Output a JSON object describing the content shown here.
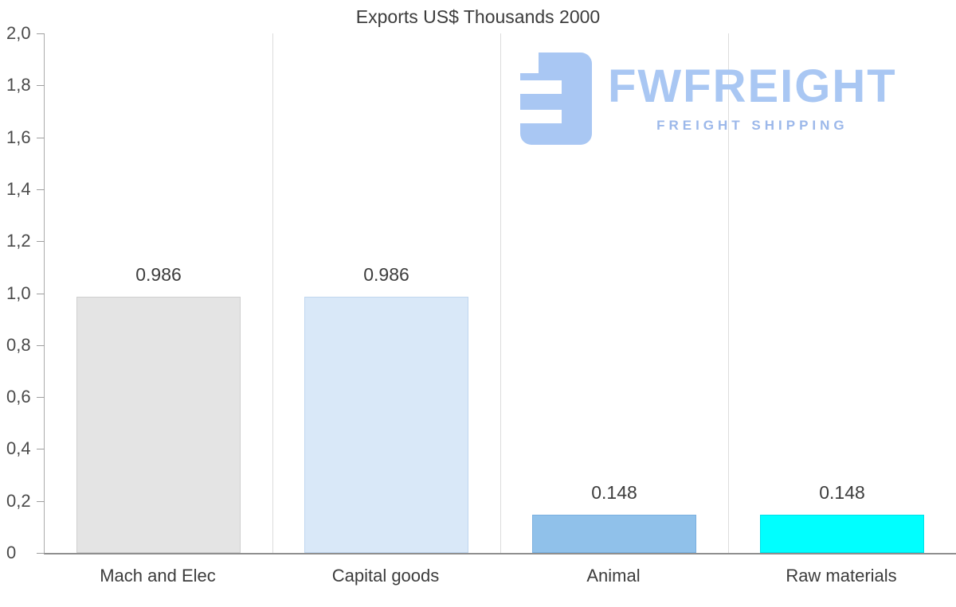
{
  "title": "Exports US$ Thousands 2000",
  "watermark": {
    "brand": "FWFREIGHT",
    "tagline": "FREIGHT SHIPPING",
    "icon": "fwfreight-logo-icon",
    "brand_color": "#a9c7f3",
    "tagline_color": "#9cb8ea"
  },
  "chart_data": {
    "type": "bar",
    "title": "Exports US$ Thousands 2000",
    "categories": [
      "Mach and Elec",
      "Capital goods",
      "Animal",
      "Raw materials"
    ],
    "values": [
      0.986,
      0.986,
      0.148,
      0.148
    ],
    "value_labels": [
      "0.986",
      "0.986",
      "0.148",
      "0.148"
    ],
    "bar_colors": [
      "#e4e4e4",
      "#d9e8f8",
      "#90c1ea",
      "#00ffff"
    ],
    "bar_border_colors": [
      "#cfcfcf",
      "#c0d6ef",
      "#7ab0e0",
      "#00e0e8"
    ],
    "xlabel": "",
    "ylabel": "",
    "ylim": [
      0,
      2
    ],
    "y_ticks": [
      {
        "value": 0,
        "label": "0"
      },
      {
        "value": 0.2,
        "label": "0,2"
      },
      {
        "value": 0.4,
        "label": "0,4"
      },
      {
        "value": 0.6,
        "label": "0,6"
      },
      {
        "value": 0.8,
        "label": "0,8"
      },
      {
        "value": 1.0,
        "label": "1,0"
      },
      {
        "value": 1.2,
        "label": "1,2"
      },
      {
        "value": 1.4,
        "label": "1,4"
      },
      {
        "value": 1.6,
        "label": "1,6"
      },
      {
        "value": 1.8,
        "label": "1,8"
      },
      {
        "value": 2.0,
        "label": "2,0"
      }
    ],
    "grid": "vertical category separators only",
    "legend": "none",
    "decimal_separator_axis": ",",
    "decimal_separator_labels": "."
  }
}
